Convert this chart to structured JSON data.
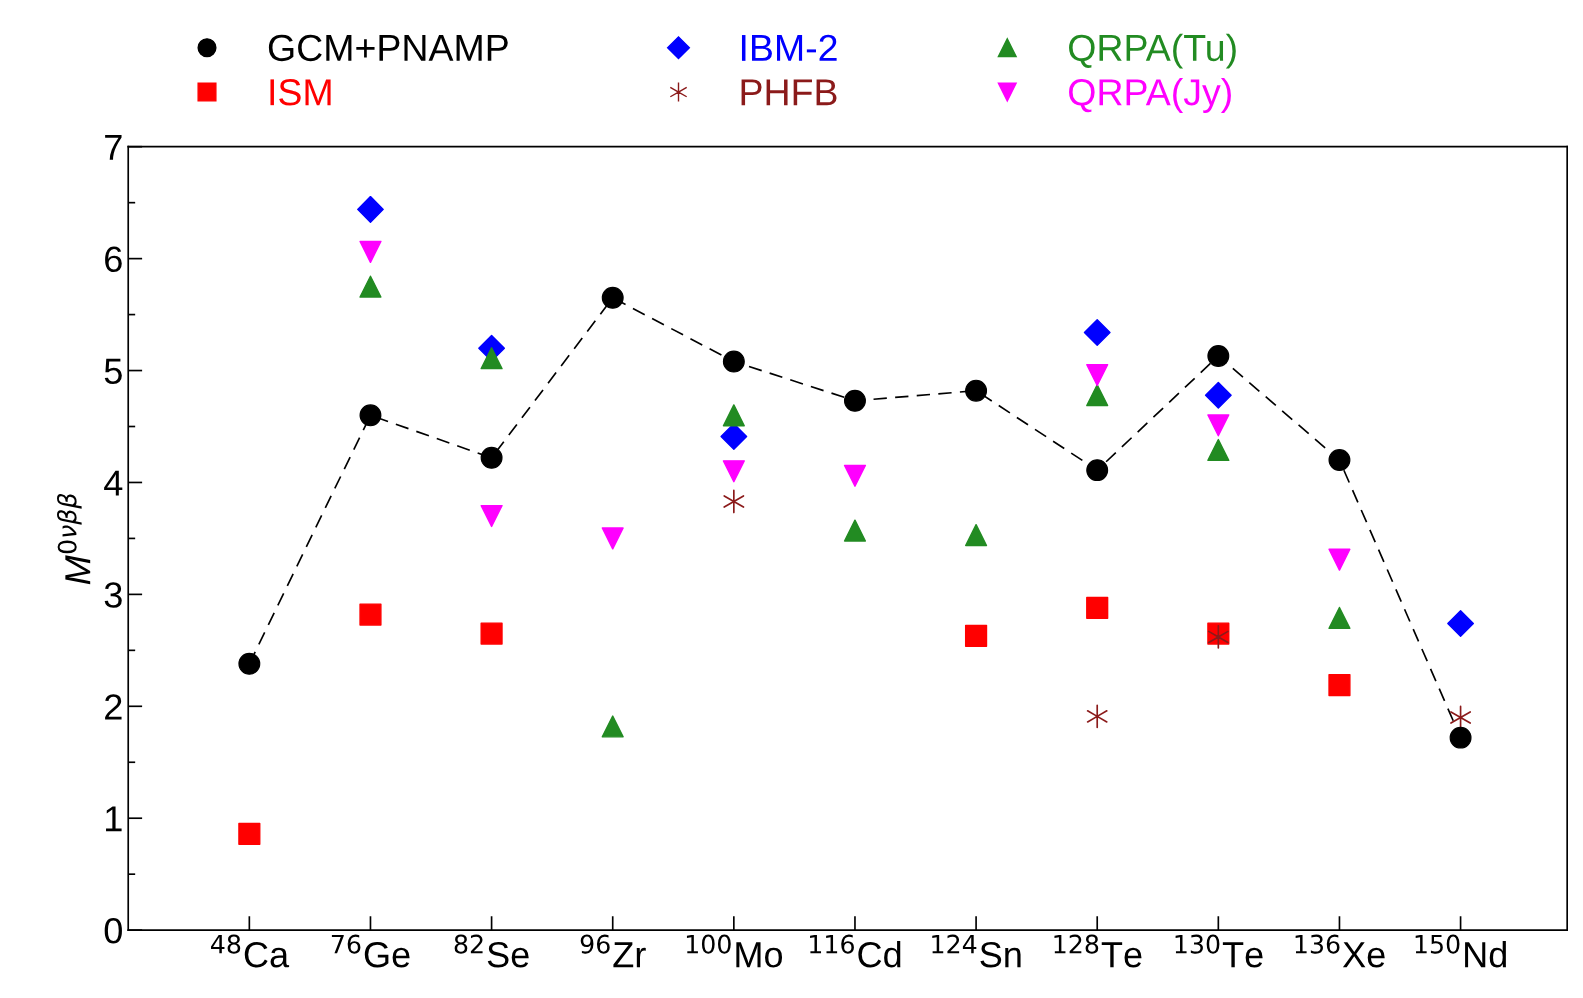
{
  "chart_data": {
    "type": "scatter",
    "ylabel": "M$^{0νββ}$",
    "categories": [
      "$^{48}$Ca",
      "$^{76}$Ge",
      "$^{82}$Se",
      "$^{96}$Zr",
      "$^{100}$Mo",
      "$^{116}$Cd",
      "$^{124}$Sn",
      "$^{128}$Te",
      "$^{130}$Te",
      "$^{136}$Xe",
      "$^{150}$Nd"
    ],
    "ylim": [
      0,
      7
    ],
    "yticks": [
      0,
      {
        "value": 0.5,
        "label": null
      },
      1,
      {
        "value": 1.5,
        "label": null
      },
      2,
      {
        "value": 2.5,
        "label": null
      },
      3,
      {
        "value": 3.5,
        "label": null
      },
      4,
      {
        "value": 4.5,
        "label": null
      },
      5,
      {
        "value": 5.5,
        "label": null
      },
      6,
      {
        "value": 6.5,
        "label": null
      },
      7
    ],
    "grid": false,
    "legend": "top",
    "series": [
      {
        "name": "GCM+PNAMP",
        "type": "line",
        "line_style": "dashed",
        "marker": "circle",
        "color": "#000000",
        "values": [
          2.38,
          4.6,
          4.22,
          5.65,
          5.08,
          4.73,
          4.82,
          4.11,
          5.13,
          4.2,
          1.72
        ]
      },
      {
        "name": "ISM",
        "marker": "square",
        "color": "#ff0000",
        "values": [
          0.86,
          2.82,
          2.65,
          null,
          null,
          null,
          2.63,
          2.88,
          2.65,
          2.19,
          null
        ]
      },
      {
        "name": "IBM-2",
        "marker": "diamond",
        "color": "#0000ff",
        "values": [
          null,
          6.44,
          5.2,
          null,
          4.41,
          null,
          null,
          5.34,
          4.78,
          null,
          2.74
        ]
      },
      {
        "name": "PHFB",
        "marker": "cross",
        "color": "#8b1a1a",
        "values": [
          null,
          null,
          null,
          null,
          3.83,
          null,
          null,
          1.91,
          2.62,
          null,
          1.9
        ]
      },
      {
        "name": "QRPA(Tu)",
        "marker": "triangle",
        "color": "#228b22",
        "values": [
          null,
          5.75,
          5.11,
          1.82,
          4.6,
          3.57,
          3.53,
          4.78,
          4.29,
          2.79,
          null
        ]
      },
      {
        "name": "QRPA(Jy)",
        "marker": "triangle_down",
        "color": "#ff00ff",
        "values": [
          null,
          6.06,
          3.7,
          3.5,
          4.1,
          4.06,
          null,
          4.96,
          4.51,
          3.31,
          null
        ]
      }
    ]
  }
}
